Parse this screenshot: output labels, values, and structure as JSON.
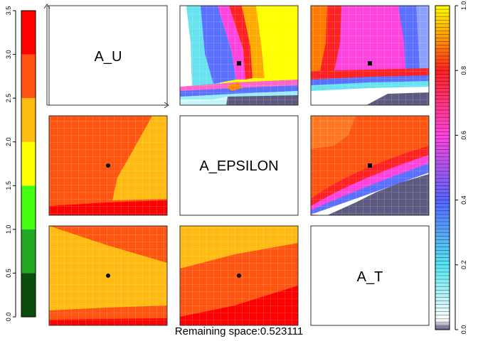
{
  "footer": {
    "label": "Remaining space:",
    "value": "0.523111"
  },
  "chart_data": {
    "type": "heatmap",
    "layout": "scatterplot-matrix",
    "parameters": [
      "A_U",
      "A_EPSILON",
      "A_T"
    ],
    "left_colorbar": {
      "ticks": [
        "0.0",
        "0.5",
        "1.0",
        "1.5",
        "2.0",
        "2.5",
        "3.0",
        "3.5"
      ],
      "range": [
        0,
        3.5
      ],
      "bands": [
        {
          "from": 0.0,
          "to": 0.5,
          "color": "#0b4d0b"
        },
        {
          "from": 0.5,
          "to": 1.0,
          "color": "#22aa22"
        },
        {
          "from": 1.0,
          "to": 1.5,
          "color": "#44ff11"
        },
        {
          "from": 1.5,
          "to": 2.0,
          "color": "#ffff00"
        },
        {
          "from": 2.0,
          "to": 2.5,
          "color": "#ffbb11"
        },
        {
          "from": 2.5,
          "to": 3.0,
          "color": "#ff5511"
        },
        {
          "from": 3.0,
          "to": 3.5,
          "color": "#ff0000"
        }
      ]
    },
    "right_colorbar": {
      "ticks": [
        "0.0",
        "0.2",
        "0.4",
        "0.6",
        "0.8",
        "1.0"
      ],
      "range": [
        0,
        1
      ],
      "gradient": [
        {
          "at": 0.0,
          "color": "#5d5a82"
        },
        {
          "at": 0.03,
          "color": "#ffffff"
        },
        {
          "at": 0.2,
          "color": "#55e6f0"
        },
        {
          "at": 0.4,
          "color": "#5566ff"
        },
        {
          "at": 0.6,
          "color": "#ff44dd"
        },
        {
          "at": 0.8,
          "color": "#ff2222"
        },
        {
          "at": 0.9,
          "color": "#ff9900"
        },
        {
          "at": 1.0,
          "color": "#ffff00"
        }
      ]
    },
    "cells": [
      {
        "row": 0,
        "col": 0,
        "kind": "label",
        "label": "A_U"
      },
      {
        "row": 0,
        "col": 1,
        "kind": "heatmap",
        "palette": "right",
        "marker": [
          0.5,
          0.58
        ]
      },
      {
        "row": 0,
        "col": 2,
        "kind": "heatmap",
        "palette": "right",
        "marker": [
          0.5,
          0.58
        ]
      },
      {
        "row": 1,
        "col": 0,
        "kind": "heatmap",
        "palette": "left",
        "marker": [
          0.5,
          0.5
        ]
      },
      {
        "row": 1,
        "col": 1,
        "kind": "label",
        "label": "A_EPSILON"
      },
      {
        "row": 1,
        "col": 2,
        "kind": "heatmap",
        "palette": "right",
        "marker": [
          0.5,
          0.5
        ]
      },
      {
        "row": 2,
        "col": 0,
        "kind": "heatmap",
        "palette": "left",
        "marker": [
          0.5,
          0.5
        ]
      },
      {
        "row": 2,
        "col": 1,
        "kind": "heatmap",
        "palette": "left",
        "marker": [
          0.5,
          0.5
        ]
      },
      {
        "row": 2,
        "col": 2,
        "kind": "label",
        "label": "A_T"
      }
    ]
  }
}
